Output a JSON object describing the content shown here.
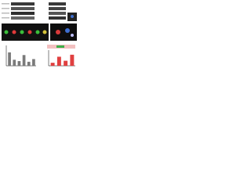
{
  "chart_data": [
    {
      "type": "bar",
      "values": [
        1.0,
        0.45,
        0.35,
        0.8,
        0.3,
        0.5
      ],
      "color": "#7a7a7a",
      "ylim": [
        0,
        1.4
      ]
    },
    {
      "type": "bar",
      "values": [
        0.3,
        0.9,
        0.5,
        1.1
      ],
      "color": "#e04040",
      "ylim": [
        0,
        1.4
      ]
    }
  ]
}
